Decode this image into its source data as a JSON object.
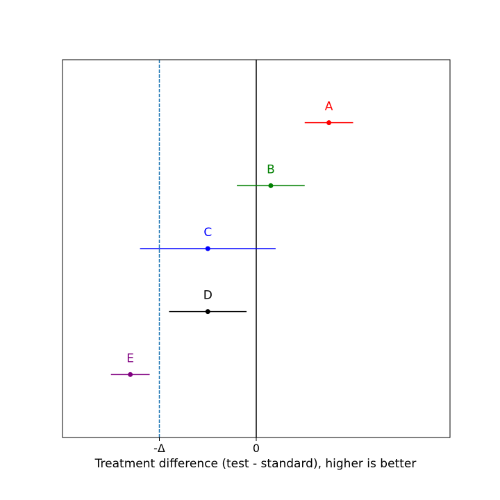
{
  "chart_data": {
    "type": "scatter",
    "title": "",
    "xlabel": "Treatment difference (test - standard), higher is better",
    "ylabel": "",
    "xlim": [
      -2.0,
      2.0
    ],
    "ylim": [
      0.5,
      6.5
    ],
    "grid": false,
    "legend": "none",
    "x_ticks": [
      {
        "value": -1.0,
        "label": "-Δ"
      },
      {
        "value": 0.0,
        "label": "0"
      }
    ],
    "reference_lines": {
      "zero": {
        "x": 0.0,
        "color": "#000000",
        "style": "solid"
      },
      "margin": {
        "x": -1.0,
        "label": "-Δ",
        "color": "#1f77b4",
        "style": "dashed"
      }
    },
    "series": [
      {
        "label": "A",
        "estimate": 0.75,
        "lower": 0.5,
        "upper": 1.0,
        "y": 5.5,
        "color": "#ff0000"
      },
      {
        "label": "B",
        "estimate": 0.15,
        "lower": -0.2,
        "upper": 0.5,
        "y": 4.5,
        "color": "#008000"
      },
      {
        "label": "C",
        "estimate": -0.5,
        "lower": -1.2,
        "upper": 0.2,
        "y": 3.5,
        "color": "#0000ff"
      },
      {
        "label": "D",
        "estimate": -0.5,
        "lower": -0.9,
        "upper": -0.1,
        "y": 2.5,
        "color": "#000000"
      },
      {
        "label": "E",
        "estimate": -1.3,
        "lower": -1.5,
        "upper": -1.1,
        "y": 1.5,
        "color": "#800080"
      }
    ]
  }
}
